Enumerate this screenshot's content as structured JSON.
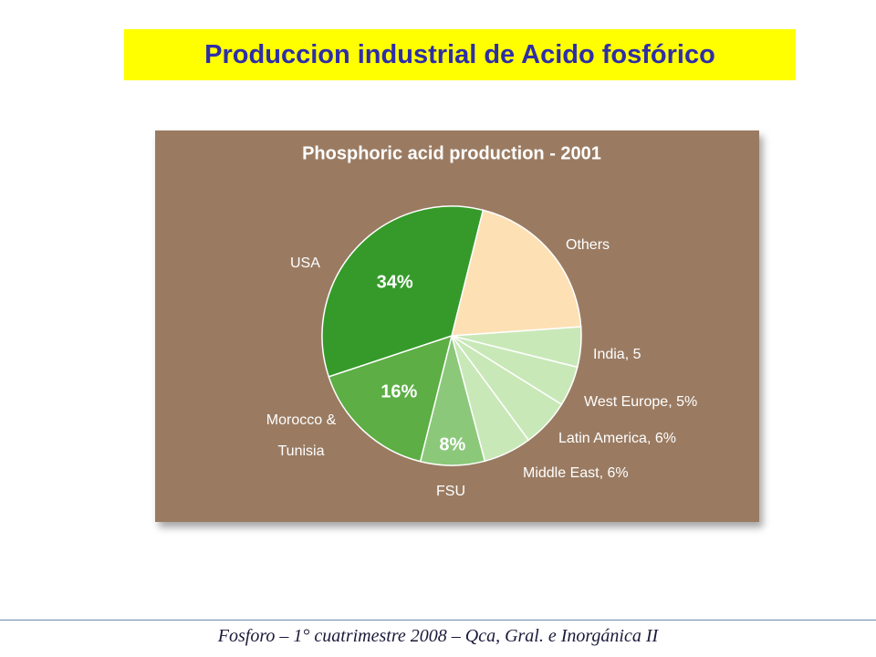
{
  "slide_title": "Produccion industrial de Acido  fosfórico",
  "chart_data": {
    "type": "pie",
    "title": "Phosphoric acid production - 2001",
    "categories": [
      "Others",
      "India, 5",
      "West Europe, 5%",
      "Latin America, 6%",
      "Middle East, 6%",
      "FSU",
      "Morocco & Tunisia",
      "USA"
    ],
    "values": [
      20,
      5,
      5,
      6,
      6,
      8,
      16,
      34
    ],
    "value_labels": [
      null,
      null,
      null,
      null,
      null,
      "8%",
      "16%",
      "34%"
    ],
    "colors": [
      "#fde0b4",
      "#c9e8b8",
      "#c9e8b8",
      "#c9e8b8",
      "#c9e8b8",
      "#8bc87a",
      "#5cae45",
      "#359a2a"
    ]
  },
  "footer": "Fosforo  – 1° cuatrimestre 2008 – Qca, Gral. e Inorgánica II"
}
